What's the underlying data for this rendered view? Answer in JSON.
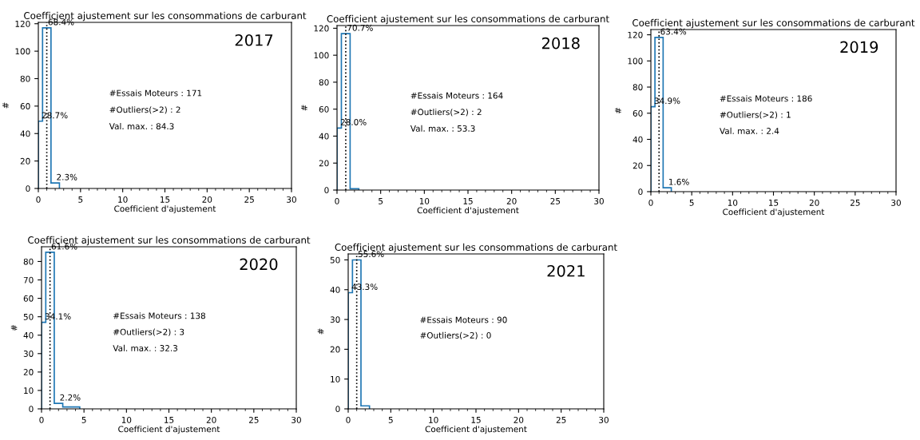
{
  "chart_data": [
    {
      "type": "histogram",
      "title": "Coefficient ajustement sur les consommations de carburant",
      "xlabel": "Coefficient d'ajustement",
      "ylabel": "#",
      "bins": [
        0,
        0.5,
        1.5,
        2.5
      ],
      "values": [
        49,
        117,
        4
      ],
      "color": "#1f77b4",
      "xlim": [
        0,
        30
      ],
      "xticks": [
        0,
        5,
        10,
        15,
        20,
        25,
        30
      ],
      "ylim": [
        0,
        121
      ],
      "yticks": [
        0,
        20,
        40,
        60,
        80,
        100,
        120
      ],
      "ref_lines": [
        {
          "axis": "x",
          "value": 1,
          "color": "#000000",
          "line_style": "dotted"
        }
      ],
      "annotations": [
        "2017",
        "#Essais Moteurs : 171",
        "#Outliers(>2) : 2",
        "Val. max. : 84.3",
        {
          "text": "28.7%",
          "x": 0.25,
          "y": 49
        },
        {
          "text": "68.4%",
          "x": 1,
          "y": 117
        },
        {
          "text": "2.3%",
          "x": 2,
          "y": 4
        }
      ],
      "grid": false
    },
    {
      "type": "histogram",
      "title": "Coefficient ajustement sur les consommations de carburant",
      "xlabel": "Coefficient d'ajustement",
      "ylabel": "#",
      "bins": [
        0,
        0.5,
        1.5,
        2.5
      ],
      "values": [
        46,
        116,
        1
      ],
      "color": "#1f77b4",
      "xlim": [
        0,
        30
      ],
      "xticks": [
        0,
        5,
        10,
        15,
        20,
        25,
        30
      ],
      "ylim": [
        0,
        122
      ],
      "yticks": [
        0,
        20,
        40,
        60,
        80,
        100,
        120
      ],
      "ref_lines": [
        {
          "axis": "x",
          "value": 1,
          "color": "#000000",
          "line_style": "dotted"
        }
      ],
      "annotations": [
        "2018",
        "#Essais Moteurs : 164",
        "#Outliers(>2) : 2",
        "Val. max. : 53.3",
        {
          "text": "28.0%",
          "x": 0.25,
          "y": 46
        },
        {
          "text": "70.7%",
          "x": 1,
          "y": 116
        }
      ],
      "grid": false
    },
    {
      "type": "histogram",
      "title": "Coefficient ajustement sur les consommations de carburant",
      "xlabel": "Coefficient d'ajustement",
      "ylabel": "#",
      "bins": [
        0,
        0.5,
        1.5,
        2.5
      ],
      "values": [
        65,
        118,
        3
      ],
      "color": "#1f77b4",
      "xlim": [
        0,
        30
      ],
      "xticks": [
        0,
        5,
        10,
        15,
        20,
        25,
        30
      ],
      "ylim": [
        0,
        124
      ],
      "yticks": [
        0,
        20,
        40,
        60,
        80,
        100,
        120
      ],
      "ref_lines": [
        {
          "axis": "x",
          "value": 1,
          "color": "#000000",
          "line_style": "dotted"
        }
      ],
      "annotations": [
        "2019",
        "#Essais Moteurs : 186",
        "#Outliers(>2) : 1",
        "Val. max. : 2.4",
        {
          "text": "34.9%",
          "x": 0.25,
          "y": 65
        },
        {
          "text": "63.4%",
          "x": 1,
          "y": 118
        },
        {
          "text": "1.6%",
          "x": 2,
          "y": 3
        }
      ],
      "grid": false
    },
    {
      "type": "histogram",
      "title": "Coefficient ajustement sur les consommations de carburant",
      "xlabel": "Coefficient d'ajustement",
      "ylabel": "#",
      "bins": [
        0,
        0.5,
        1.5,
        2.5,
        3.5,
        4.5
      ],
      "values": [
        47,
        85,
        3,
        1,
        1
      ],
      "color": "#1f77b4",
      "xlim": [
        0,
        30
      ],
      "xticks": [
        0,
        5,
        10,
        15,
        20,
        25,
        30
      ],
      "ylim": [
        0,
        88
      ],
      "yticks": [
        0,
        10,
        20,
        30,
        40,
        50,
        60,
        70,
        80
      ],
      "ref_lines": [
        {
          "axis": "x",
          "value": 1,
          "color": "#000000",
          "line_style": "dotted"
        }
      ],
      "annotations": [
        "2020",
        "#Essais Moteurs : 138",
        "#Outliers(>2) : 3",
        "Val. max. : 32.3",
        {
          "text": "34.1%",
          "x": 0.25,
          "y": 47
        },
        {
          "text": "61.6%",
          "x": 1,
          "y": 85
        },
        {
          "text": "2.2%",
          "x": 2,
          "y": 3
        }
      ],
      "grid": false
    },
    {
      "type": "histogram",
      "title": "Coefficient ajustement sur les consommations de carburant",
      "xlabel": "Coefficient d'ajustement",
      "ylabel": "#",
      "bins": [
        0,
        0.5,
        1.5,
        2.5
      ],
      "values": [
        39,
        50,
        1
      ],
      "color": "#1f77b4",
      "xlim": [
        0,
        30
      ],
      "xticks": [
        0,
        5,
        10,
        15,
        20,
        25,
        30
      ],
      "ylim": [
        0,
        52
      ],
      "yticks": [
        0,
        10,
        20,
        30,
        40,
        50
      ],
      "ref_lines": [
        {
          "axis": "x",
          "value": 1,
          "color": "#000000",
          "line_style": "dotted"
        }
      ],
      "annotations": [
        "2021",
        "#Essais Moteurs : 90",
        "#Outliers(>2) : 0",
        {
          "text": "43.3%",
          "x": 0.25,
          "y": 39
        },
        {
          "text": "55.6%",
          "x": 1,
          "y": 50
        }
      ],
      "grid": false
    }
  ]
}
